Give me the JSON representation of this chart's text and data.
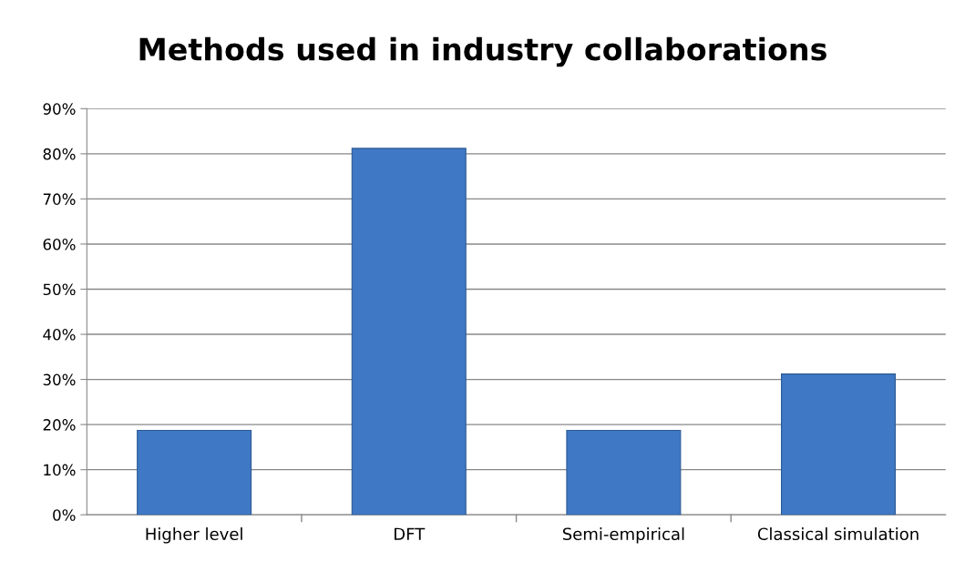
{
  "chart_data": {
    "type": "bar",
    "title": "Methods used in industry collaborations",
    "categories": [
      "Higher level",
      "DFT",
      "Semi-empirical",
      "Classical simulation"
    ],
    "values": [
      18.7,
      81.2,
      18.7,
      31.2
    ],
    "color": "#3f78c4",
    "ylim": [
      0,
      90
    ],
    "yticks": [
      {
        "value": 0,
        "label": "0%"
      },
      {
        "value": 10,
        "label": "10%"
      },
      {
        "value": 20,
        "label": "20%"
      },
      {
        "value": 30,
        "label": "30%"
      },
      {
        "value": 40,
        "label": "40%"
      },
      {
        "value": 50,
        "label": "50%"
      },
      {
        "value": 60,
        "label": "60%"
      },
      {
        "value": 70,
        "label": "70%"
      },
      {
        "value": 80,
        "label": "80%"
      },
      {
        "value": 90,
        "label": "90%"
      }
    ],
    "grid": "y"
  }
}
